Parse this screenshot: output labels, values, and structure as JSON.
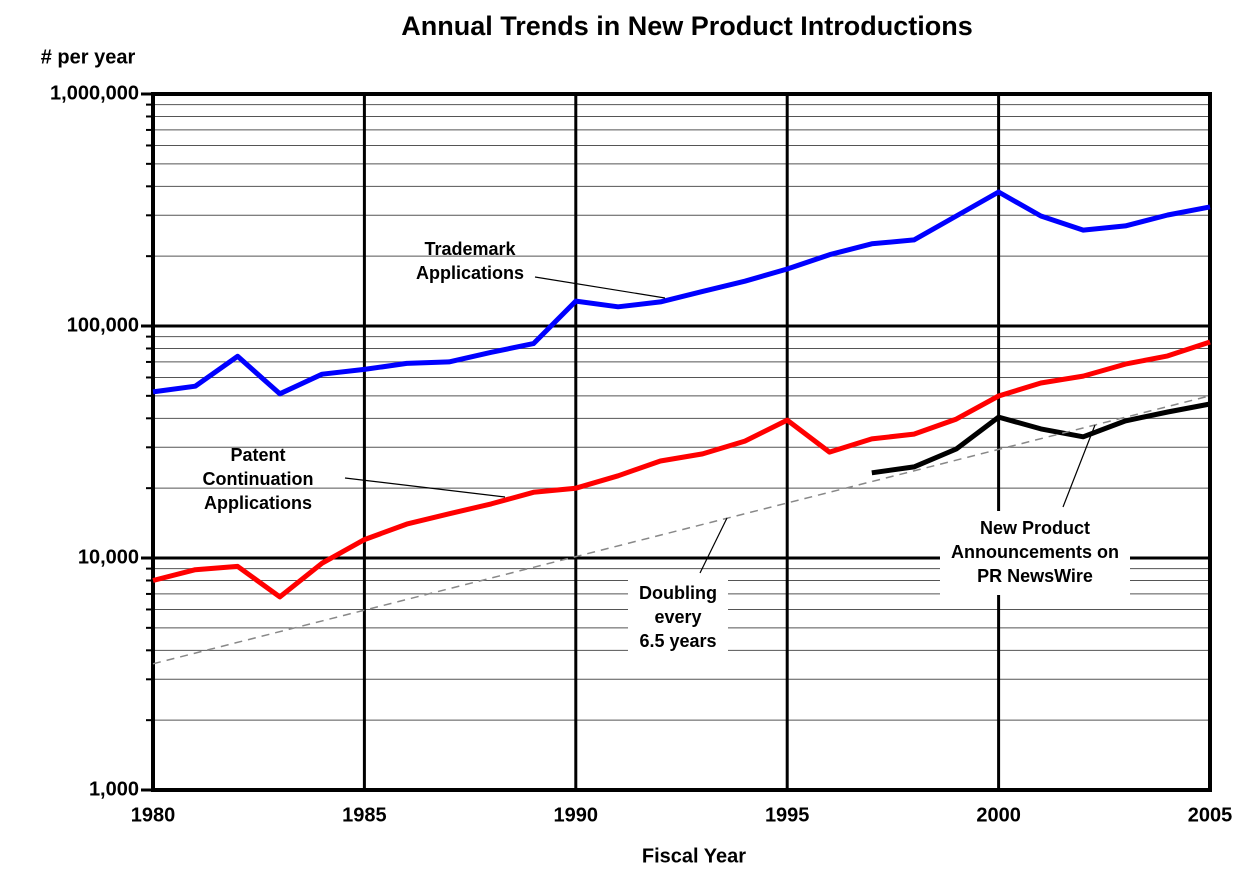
{
  "chart_data": {
    "type": "line",
    "title": "Annual Trends in New Product Introductions",
    "y_label": "# per year",
    "x_label": "Fiscal Year",
    "log_scale_y": true,
    "grid": true,
    "x": [
      1980,
      1981,
      1982,
      1983,
      1984,
      1985,
      1986,
      1987,
      1988,
      1989,
      1990,
      1991,
      1992,
      1993,
      1994,
      1995,
      1996,
      1997,
      1998,
      1999,
      2000,
      2001,
      2002,
      2003,
      2004,
      2005
    ],
    "xlim": [
      1980,
      2005
    ],
    "xticks": [
      1980,
      1985,
      1990,
      1995,
      2000,
      2005
    ],
    "ylim": [
      1000,
      1000000
    ],
    "yticks": [
      {
        "value": 1000,
        "label": "1,000"
      },
      {
        "value": 10000,
        "label": "10,000"
      },
      {
        "value": 100000,
        "label": "100,000"
      },
      {
        "value": 1000000,
        "label": "1,000,000"
      }
    ],
    "yminor_ticks": [
      2000,
      3000,
      4000,
      5000,
      6000,
      7000,
      8000,
      9000,
      20000,
      30000,
      40000,
      50000,
      60000,
      70000,
      80000,
      90000,
      200000,
      300000,
      400000,
      500000,
      600000,
      700000,
      800000,
      900000
    ],
    "series": [
      {
        "name": "Trademark Applications",
        "color": "#0000ff",
        "values": [
          52000,
          55000,
          74000,
          51000,
          62000,
          65000,
          69000,
          70000,
          77000,
          84000,
          128000,
          121000,
          127000,
          141000,
          156000,
          176000,
          203000,
          226000,
          235000,
          298000,
          378000,
          298000,
          259000,
          270000,
          301000,
          326000
        ]
      },
      {
        "name": "Patent Continuation Applications",
        "color": "#ff0000",
        "values": [
          8000,
          8900,
          9200,
          6800,
          9500,
          12000,
          14000,
          15500,
          17100,
          19200,
          20000,
          22600,
          26200,
          28100,
          31900,
          39300,
          28600,
          32600,
          34200,
          39700,
          49900,
          56800,
          60800,
          68500,
          74300,
          85300
        ]
      },
      {
        "name": "New Product Announcements on PR NewsWire",
        "color": "#000000",
        "values": [
          null,
          null,
          null,
          null,
          null,
          null,
          null,
          null,
          null,
          null,
          null,
          null,
          null,
          null,
          null,
          null,
          null,
          23300,
          24700,
          29500,
          40500,
          36000,
          33300,
          39000,
          42600,
          46100
        ]
      },
      {
        "name": "Doubling every 6.5 years",
        "color": "#888888",
        "dashed": true,
        "x": [
          1980,
          2005
        ],
        "values": [
          3500,
          50000
        ]
      }
    ],
    "annotations": [
      {
        "lines": [
          "Trademark",
          "Applications"
        ]
      },
      {
        "lines": [
          "Patent",
          "Continuation",
          "Applications"
        ]
      },
      {
        "lines": [
          "Doubling",
          "every",
          "6.5 years"
        ]
      },
      {
        "lines": [
          "New Product",
          "Announcements on",
          "PR NewsWire"
        ]
      }
    ]
  }
}
